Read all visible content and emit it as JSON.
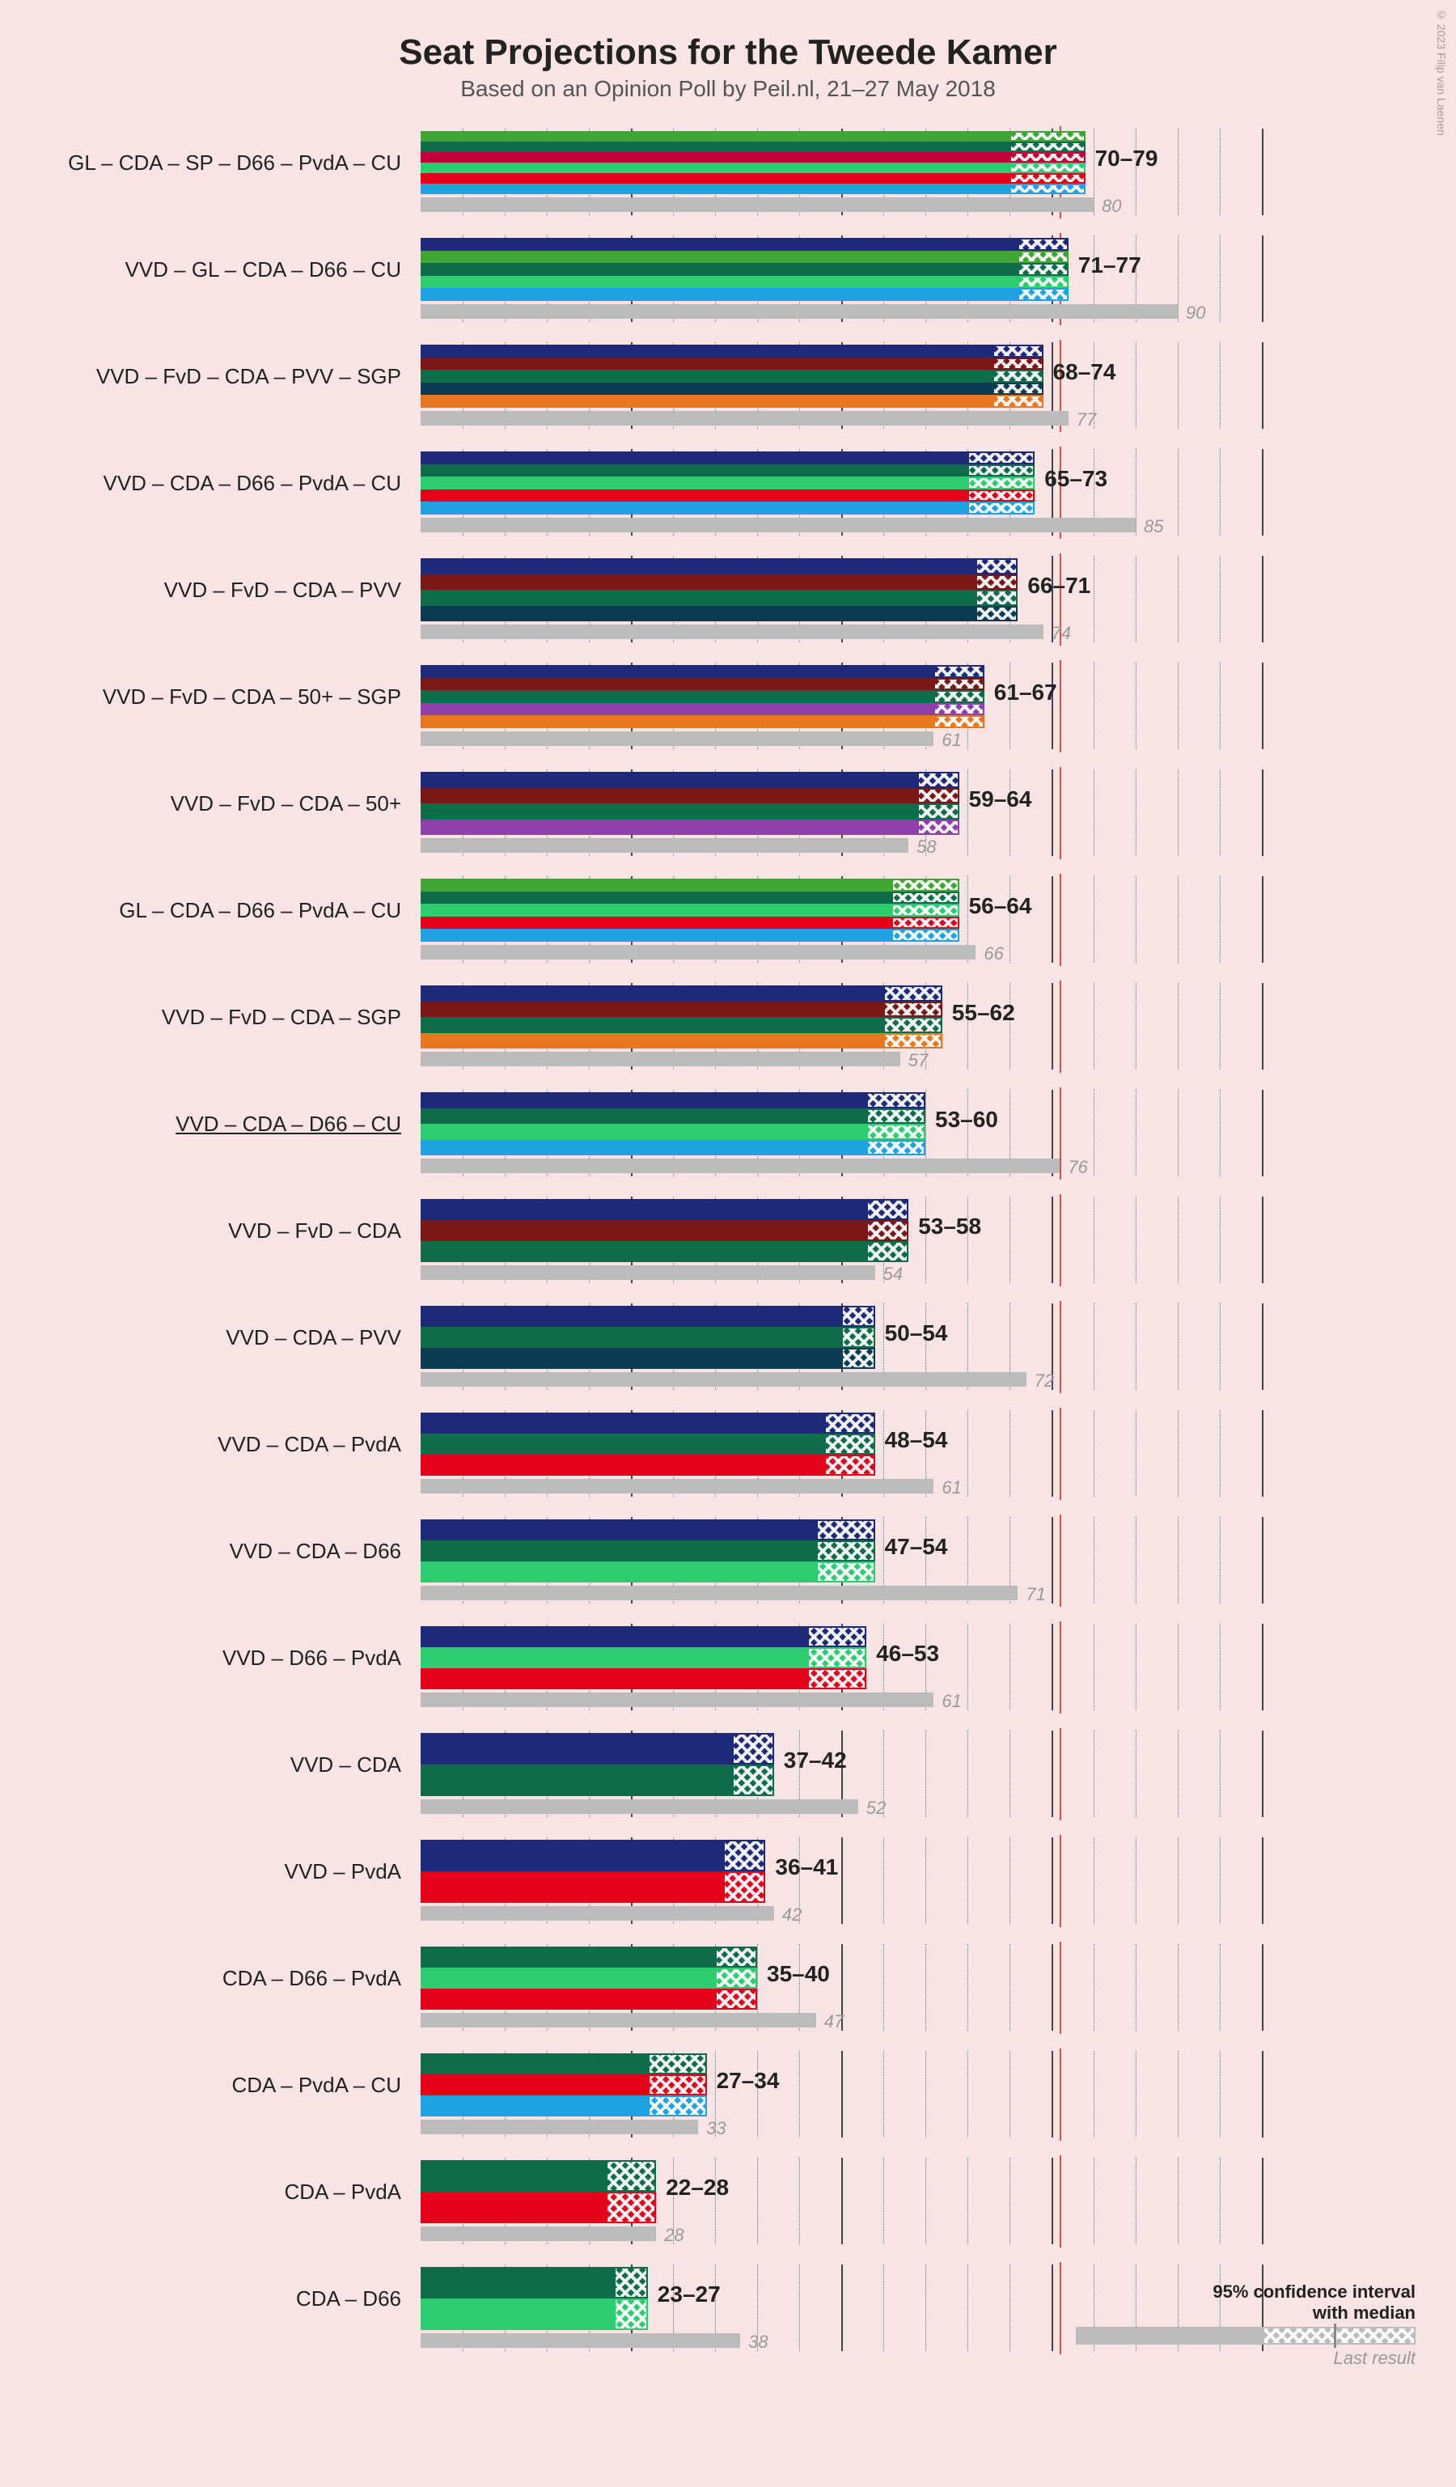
{
  "title": "Seat Projections for the Tweede Kamer",
  "subtitle": "Based on an Opinion Poll by Peil.nl, 21–27 May 2018",
  "copyright": "© 2023 Filip van Laenen",
  "legend": {
    "line1": "95% confidence interval",
    "line1b": "with median",
    "line2": "Last result"
  },
  "axis": {
    "max": 100,
    "minor_step": 5,
    "major_step": 25,
    "majority_line": 76,
    "minor_color": "#777",
    "major_color": "#444"
  },
  "party_colors": {
    "VVD": "#1e2a78",
    "GL": "#3fa535",
    "CDA": "#0f6b4a",
    "SP": "#c2003a",
    "D66": "#2ecc71",
    "PvdA": "#e2001a",
    "CU": "#1fa3e0",
    "FvD": "#7a1818",
    "PVV": "#0a3b52",
    "SGP": "#e87722",
    "50+": "#8e3fa8"
  },
  "rows": [
    {
      "label": "GL – CDA – SP – D66 – PvdA – CU",
      "parties": [
        "GL",
        "CDA",
        "SP",
        "D66",
        "PvdA",
        "CU"
      ],
      "low": 70,
      "high": 79,
      "last": 80
    },
    {
      "label": "VVD – GL – CDA – D66 – CU",
      "parties": [
        "VVD",
        "GL",
        "CDA",
        "D66",
        "CU"
      ],
      "low": 71,
      "high": 77,
      "last": 90
    },
    {
      "label": "VVD – FvD – CDA – PVV – SGP",
      "parties": [
        "VVD",
        "FvD",
        "CDA",
        "PVV",
        "SGP"
      ],
      "low": 68,
      "high": 74,
      "last": 77
    },
    {
      "label": "VVD – CDA – D66 – PvdA – CU",
      "parties": [
        "VVD",
        "CDA",
        "D66",
        "PvdA",
        "CU"
      ],
      "low": 65,
      "high": 73,
      "last": 85
    },
    {
      "label": "VVD – FvD – CDA – PVV",
      "parties": [
        "VVD",
        "FvD",
        "CDA",
        "PVV"
      ],
      "low": 66,
      "high": 71,
      "last": 74
    },
    {
      "label": "VVD – FvD – CDA – 50+ – SGP",
      "parties": [
        "VVD",
        "FvD",
        "CDA",
        "50+",
        "SGP"
      ],
      "low": 61,
      "high": 67,
      "last": 61
    },
    {
      "label": "VVD – FvD – CDA – 50+",
      "parties": [
        "VVD",
        "FvD",
        "CDA",
        "50+"
      ],
      "low": 59,
      "high": 64,
      "last": 58
    },
    {
      "label": "GL – CDA – D66 – PvdA – CU",
      "parties": [
        "GL",
        "CDA",
        "D66",
        "PvdA",
        "CU"
      ],
      "low": 56,
      "high": 64,
      "last": 66
    },
    {
      "label": "VVD – FvD – CDA – SGP",
      "parties": [
        "VVD",
        "FvD",
        "CDA",
        "SGP"
      ],
      "low": 55,
      "high": 62,
      "last": 57
    },
    {
      "label": "VVD – CDA – D66 – CU",
      "parties": [
        "VVD",
        "CDA",
        "D66",
        "CU"
      ],
      "low": 53,
      "high": 60,
      "last": 76,
      "underline": true
    },
    {
      "label": "VVD – FvD – CDA",
      "parties": [
        "VVD",
        "FvD",
        "CDA"
      ],
      "low": 53,
      "high": 58,
      "last": 54
    },
    {
      "label": "VVD – CDA – PVV",
      "parties": [
        "VVD",
        "CDA",
        "PVV"
      ],
      "low": 50,
      "high": 54,
      "last": 72
    },
    {
      "label": "VVD – CDA – PvdA",
      "parties": [
        "VVD",
        "CDA",
        "PvdA"
      ],
      "low": 48,
      "high": 54,
      "last": 61
    },
    {
      "label": "VVD – CDA – D66",
      "parties": [
        "VVD",
        "CDA",
        "D66"
      ],
      "low": 47,
      "high": 54,
      "last": 71
    },
    {
      "label": "VVD – D66 – PvdA",
      "parties": [
        "VVD",
        "D66",
        "PvdA"
      ],
      "low": 46,
      "high": 53,
      "last": 61
    },
    {
      "label": "VVD – CDA",
      "parties": [
        "VVD",
        "CDA"
      ],
      "low": 37,
      "high": 42,
      "last": 52
    },
    {
      "label": "VVD – PvdA",
      "parties": [
        "VVD",
        "PvdA"
      ],
      "low": 36,
      "high": 41,
      "last": 42
    },
    {
      "label": "CDA – D66 – PvdA",
      "parties": [
        "CDA",
        "D66",
        "PvdA"
      ],
      "low": 35,
      "high": 40,
      "last": 47
    },
    {
      "label": "CDA – PvdA – CU",
      "parties": [
        "CDA",
        "PvdA",
        "CU"
      ],
      "low": 27,
      "high": 34,
      "last": 33
    },
    {
      "label": "CDA – PvdA",
      "parties": [
        "CDA",
        "PvdA"
      ],
      "low": 22,
      "high": 28,
      "last": 28
    },
    {
      "label": "CDA – D66",
      "parties": [
        "CDA",
        "D66"
      ],
      "low": 23,
      "high": 27,
      "last": 38
    }
  ]
}
